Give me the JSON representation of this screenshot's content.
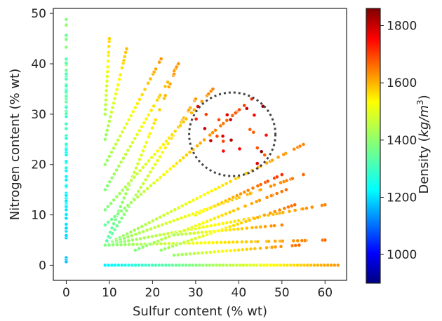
{
  "chart_data": {
    "type": "scatter",
    "xlabel": "Sulfur content (% wt)",
    "ylabel": "Nitrogen content (% wt)",
    "colorbar_label": "Density (kg/m³)",
    "colorbar_label_prefix": "Density (",
    "colorbar_label_units": "kg/m",
    "colorbar_label_exp": "3",
    "colorbar_label_suffix": ")",
    "xlim": [
      -3,
      65
    ],
    "ylim": [
      -3,
      51
    ],
    "xticks": [
      0,
      10,
      20,
      30,
      40,
      50,
      60
    ],
    "yticks": [
      0,
      10,
      20,
      30,
      40,
      50
    ],
    "colorbar_range": [
      900,
      1860
    ],
    "colorbar_ticks": [
      1000,
      1200,
      1400,
      1600,
      1800
    ],
    "colormap": "jet",
    "annotation": {
      "shape": "dotted-circle",
      "center": [
        38.5,
        26
      ],
      "radius_x": 10,
      "radius_y": 8.3
    },
    "series": [
      {
        "kind": "vertical",
        "x": 0,
        "y_range": [
          0,
          49
        ],
        "density_range": [
          1200,
          1430
        ]
      },
      {
        "kind": "horizontal",
        "y": 0,
        "x_range": [
          9,
          63
        ],
        "density_range": [
          1250,
          1600
        ]
      },
      {
        "kind": "rays",
        "rays": [
          {
            "start": [
              9,
              4
            ],
            "end": [
              55,
              24
            ],
            "density_range": [
              1380,
              1620
            ]
          },
          {
            "start": [
              9,
              4
            ],
            "end": [
              30,
              33
            ],
            "density_range": [
              1330,
              1600
            ]
          },
          {
            "start": [
              9,
              4
            ],
            "end": [
              25,
              38
            ],
            "density_range": [
              1330,
              1600
            ]
          },
          {
            "start": [
              9,
              4
            ],
            "end": [
              55,
              18
            ],
            "density_range": [
              1380,
              1640
            ]
          },
          {
            "start": [
              9,
              4
            ],
            "end": [
              60,
              12
            ],
            "density_range": [
              1380,
              1620
            ]
          },
          {
            "start": [
              9,
              4
            ],
            "end": [
              60,
              5
            ],
            "density_range": [
              1380,
              1640
            ]
          },
          {
            "start": [
              9,
              8
            ],
            "end": [
              43,
              33
            ],
            "density_range": [
              1350,
              1700
            ]
          },
          {
            "start": [
              9,
              11
            ],
            "end": [
              34,
              35
            ],
            "density_range": [
              1380,
              1620
            ]
          },
          {
            "start": [
              9,
              15
            ],
            "end": [
              26,
              40
            ],
            "density_range": [
              1380,
              1600
            ]
          },
          {
            "start": [
              9,
              20
            ],
            "end": [
              22,
              41
            ],
            "density_range": [
              1400,
              1600
            ]
          },
          {
            "start": [
              9,
              25
            ],
            "end": [
              14,
              43
            ],
            "density_range": [
              1400,
              1560
            ]
          },
          {
            "start": [
              9,
              30
            ],
            "end": [
              10,
              45
            ],
            "density_range": [
              1420,
              1540
            ]
          },
          {
            "start": [
              16,
              3
            ],
            "end": [
              51,
              15
            ],
            "density_range": [
              1380,
              1640
            ]
          },
          {
            "start": [
              22,
              3
            ],
            "end": [
              53,
              12
            ],
            "density_range": [
              1400,
              1640
            ]
          },
          {
            "start": [
              25,
              2
            ],
            "end": [
              54,
              4
            ],
            "density_range": [
              1400,
              1640
            ]
          },
          {
            "start": [
              25,
              6
            ],
            "end": [
              50,
              8
            ],
            "density_range": [
              1420,
              1620
            ]
          },
          {
            "start": [
              30,
              10
            ],
            "end": [
              50,
              18
            ],
            "density_range": [
              1480,
              1700
            ]
          }
        ]
      },
      {
        "kind": "cluster",
        "x_range": [
          30,
          47
        ],
        "y_range": [
          20,
          32
        ],
        "density_range": [
          1650,
          1850
        ]
      }
    ]
  }
}
